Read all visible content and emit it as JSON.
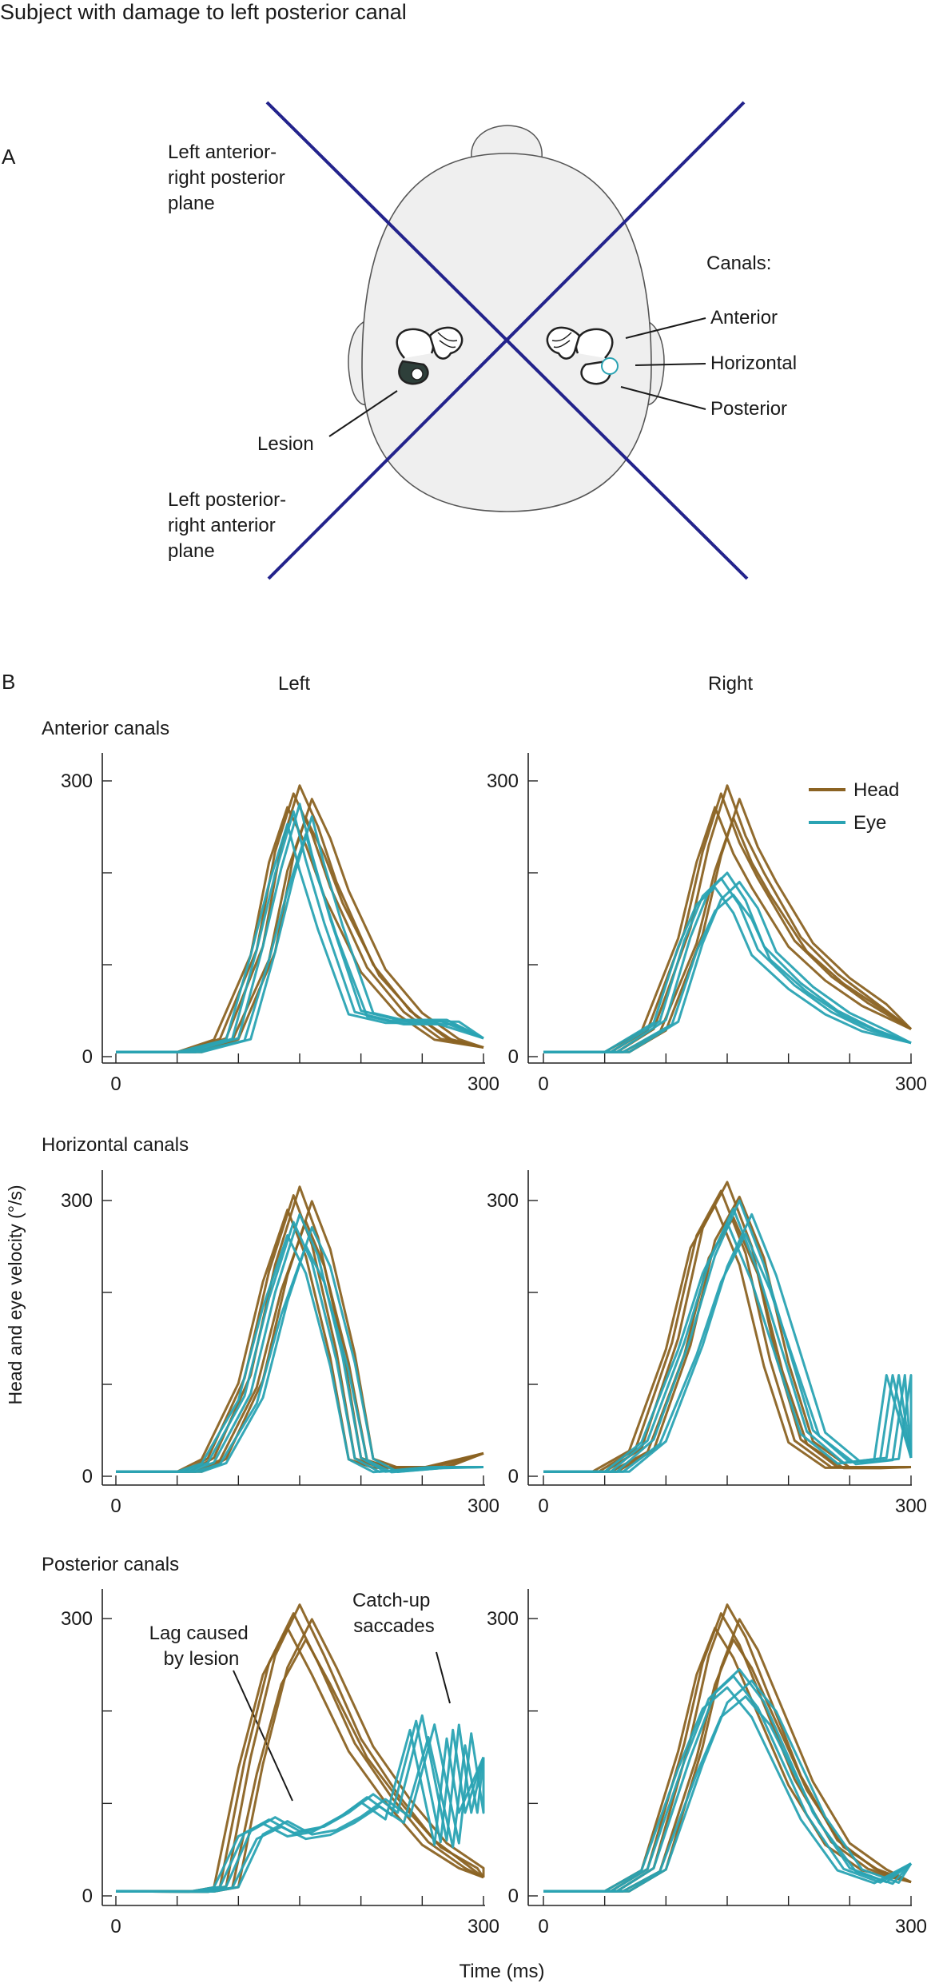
{
  "title": "Subject with damage to left posterior canal",
  "panel_a": {
    "label": "A",
    "plane_top_left": [
      "Left anterior-",
      "right posterior",
      "plane"
    ],
    "plane_bottom_left": [
      "Left posterior-",
      "right anterior",
      "plane"
    ],
    "canals_title": "Canals:",
    "canal_labels": [
      "Anterior",
      "Horizontal",
      "Posterior"
    ],
    "lesion_label": "Lesion",
    "colors": {
      "plane_lines": "#23238c",
      "head_fill": "#efefef",
      "lesion_fill": "#2e3f3a"
    }
  },
  "panel_b": {
    "label": "B",
    "col_left": "Left",
    "col_right": "Right",
    "row_titles": [
      "Anterior canals",
      "Horizontal canals",
      "Posterior canals"
    ],
    "ylabel": "Head and eye velocity (°/s)",
    "xlabel": "Time (ms)",
    "legend": [
      {
        "name": "Head",
        "color": "#8b6323"
      },
      {
        "name": "Eye",
        "color": "#2aa3b3"
      }
    ],
    "annotations": [
      [
        "Lag caused",
        "by lesion"
      ],
      [
        "Catch-up",
        "saccades"
      ]
    ]
  },
  "chart_data": [
    {
      "type": "line",
      "title": "Anterior canals",
      "panel": "Left",
      "x_ticks": [
        "0",
        "300"
      ],
      "y_ticks": [
        "0",
        "300"
      ],
      "xlim": [
        0,
        300
      ],
      "ylim": [
        0,
        300
      ],
      "series": [
        {
          "name": "Head",
          "x": [
            0,
            60,
            90,
            120,
            135,
            150,
            165,
            180,
            210,
            240,
            270,
            300
          ],
          "values": [
            5,
            5,
            20,
            120,
            230,
            295,
            250,
            190,
            100,
            50,
            20,
            10
          ]
        },
        {
          "name": "Eye",
          "x": [
            0,
            60,
            100,
            120,
            135,
            150,
            160,
            175,
            200,
            230,
            270,
            300
          ],
          "values": [
            5,
            5,
            20,
            120,
            205,
            275,
            220,
            150,
            50,
            40,
            40,
            20
          ]
        }
      ]
    },
    {
      "type": "line",
      "title": "Anterior canals",
      "panel": "Right",
      "x_ticks": [
        "0",
        "300"
      ],
      "y_ticks": [
        "0",
        "300"
      ],
      "xlim": [
        0,
        300
      ],
      "ylim": [
        0,
        300
      ],
      "series": [
        {
          "name": "Head",
          "x": [
            0,
            60,
            90,
            120,
            135,
            150,
            165,
            180,
            210,
            240,
            270,
            300
          ],
          "values": [
            5,
            5,
            30,
            140,
            230,
            295,
            240,
            200,
            130,
            90,
            60,
            30
          ]
        },
        {
          "name": "Eye",
          "x": [
            0,
            60,
            100,
            120,
            135,
            150,
            165,
            180,
            210,
            240,
            270,
            300
          ],
          "values": [
            5,
            5,
            40,
            130,
            180,
            200,
            170,
            120,
            80,
            50,
            30,
            15
          ]
        }
      ]
    },
    {
      "type": "line",
      "title": "Horizontal canals",
      "panel": "Left",
      "x_ticks": [
        "0",
        "300"
      ],
      "y_ticks": [
        "0",
        "300"
      ],
      "xlim": [
        0,
        300
      ],
      "ylim": [
        0,
        300
      ],
      "series": [
        {
          "name": "Head",
          "x": [
            0,
            60,
            80,
            110,
            130,
            150,
            165,
            185,
            200,
            220,
            260,
            300
          ],
          "values": [
            5,
            5,
            20,
            110,
            230,
            315,
            260,
            140,
            20,
            10,
            10,
            25
          ]
        },
        {
          "name": "Eye",
          "x": [
            0,
            60,
            80,
            110,
            130,
            150,
            165,
            185,
            200,
            220,
            260,
            300
          ],
          "values": [
            5,
            5,
            15,
            90,
            200,
            285,
            240,
            130,
            20,
            5,
            10,
            10
          ]
        }
      ]
    },
    {
      "type": "line",
      "title": "Horizontal canals",
      "panel": "Right",
      "x_ticks": [
        "0",
        "300"
      ],
      "y_ticks": [
        "0",
        "300"
      ],
      "xlim": [
        0,
        300
      ],
      "ylim": [
        0,
        300
      ],
      "series": [
        {
          "name": "Head",
          "x": [
            0,
            50,
            80,
            110,
            130,
            150,
            170,
            190,
            210,
            240,
            270,
            300
          ],
          "values": [
            5,
            5,
            30,
            150,
            270,
            320,
            250,
            130,
            40,
            10,
            10,
            10
          ]
        },
        {
          "name": "Eye",
          "x": [
            0,
            60,
            90,
            120,
            140,
            160,
            180,
            200,
            220,
            250,
            280,
            290,
            300
          ],
          "values": [
            5,
            5,
            40,
            150,
            240,
            300,
            230,
            140,
            50,
            15,
            20,
            110,
            20
          ]
        }
      ]
    },
    {
      "type": "line",
      "title": "Posterior canals",
      "panel": "Left",
      "x_ticks": [
        "0",
        "300"
      ],
      "y_ticks": [
        "0",
        "300"
      ],
      "xlim": [
        0,
        300
      ],
      "ylim": [
        0,
        300
      ],
      "series": [
        {
          "name": "Head",
          "x": [
            0,
            70,
            90,
            110,
            130,
            150,
            170,
            200,
            230,
            260,
            290,
            300
          ],
          "values": [
            5,
            5,
            10,
            150,
            260,
            315,
            260,
            170,
            110,
            60,
            30,
            20
          ]
        },
        {
          "name": "Eye",
          "x": [
            0,
            70,
            90,
            110,
            130,
            150,
            170,
            190,
            210,
            230,
            250,
            270,
            280,
            290,
            300
          ],
          "values": [
            5,
            5,
            10,
            70,
            85,
            70,
            75,
            90,
            110,
            90,
            195,
            60,
            185,
            90,
            150
          ]
        }
      ]
    },
    {
      "type": "line",
      "title": "Posterior canals",
      "panel": "Right",
      "x_ticks": [
        "0",
        "300"
      ],
      "y_ticks": [
        "0",
        "300"
      ],
      "xlim": [
        0,
        300
      ],
      "ylim": [
        0,
        300
      ],
      "series": [
        {
          "name": "Head",
          "x": [
            0,
            60,
            90,
            120,
            135,
            150,
            165,
            180,
            210,
            240,
            270,
            300
          ],
          "values": [
            5,
            5,
            30,
            170,
            260,
            315,
            280,
            230,
            130,
            60,
            30,
            15
          ]
        },
        {
          "name": "Eye",
          "x": [
            0,
            60,
            90,
            120,
            140,
            160,
            180,
            200,
            220,
            250,
            280,
            300
          ],
          "values": [
            5,
            5,
            30,
            150,
            220,
            245,
            210,
            150,
            90,
            30,
            15,
            35
          ]
        }
      ]
    }
  ]
}
